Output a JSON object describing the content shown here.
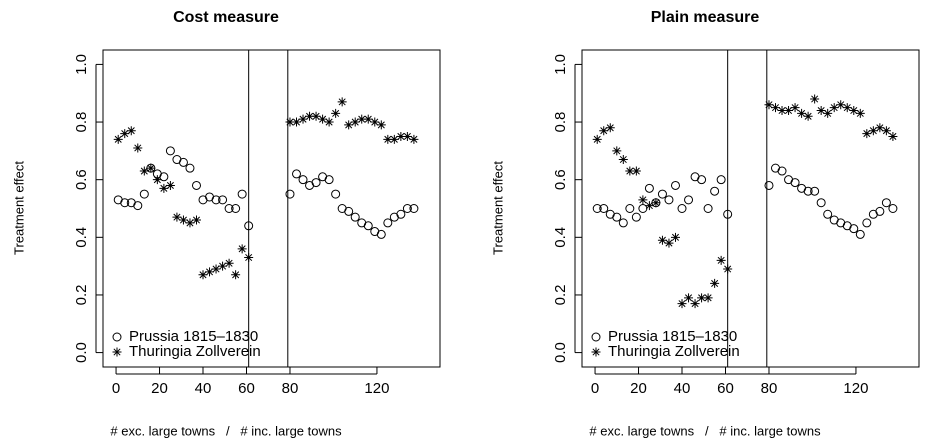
{
  "chart_data": [
    {
      "type": "scatter",
      "title": "Cost measure",
      "xlabel": "# exc. large towns   /   # inc. large towns",
      "ylabel": "Treatment effect",
      "x": [
        1,
        4,
        7,
        10,
        13,
        16,
        19,
        22,
        25,
        28,
        31,
        34,
        37,
        40,
        43,
        46,
        49,
        52,
        55,
        58,
        61,
        80,
        83,
        86,
        89,
        92,
        95,
        98,
        101,
        104,
        107,
        110,
        113,
        116,
        119,
        122,
        125,
        128,
        131,
        134,
        137
      ],
      "series": [
        {
          "name": "Prussia 1815–1830",
          "marker": "circle",
          "color": "#000000",
          "values": [
            0.53,
            0.52,
            0.52,
            0.51,
            0.55,
            0.64,
            0.62,
            0.61,
            0.7,
            0.67,
            0.66,
            0.64,
            0.58,
            0.53,
            0.54,
            0.53,
            0.53,
            0.5,
            0.5,
            0.55,
            0.44,
            0.55,
            0.62,
            0.6,
            0.58,
            0.59,
            0.61,
            0.6,
            0.55,
            0.5,
            0.49,
            0.47,
            0.45,
            0.44,
            0.42,
            0.41,
            0.45,
            0.47,
            0.48,
            0.5,
            0.5
          ]
        },
        {
          "name": "Thuringia Zollverein",
          "marker": "star",
          "color": "#000000",
          "values": [
            0.74,
            0.76,
            0.77,
            0.71,
            0.63,
            0.64,
            0.6,
            0.57,
            0.58,
            0.47,
            0.46,
            0.45,
            0.46,
            0.27,
            0.28,
            0.29,
            0.3,
            0.31,
            0.27,
            0.36,
            0.33,
            0.8,
            0.8,
            0.81,
            0.82,
            0.82,
            0.81,
            0.8,
            0.83,
            0.87,
            0.79,
            0.8,
            0.81,
            0.81,
            0.8,
            0.79,
            0.74,
            0.74,
            0.75,
            0.75,
            0.74
          ]
        }
      ],
      "xlim": [
        -6,
        149
      ],
      "ylim": [
        -0.05,
        1.05
      ],
      "xticks": [
        0,
        20,
        40,
        60,
        80,
        120
      ],
      "yticks": [
        {
          "value": 0,
          "label": "0.0"
        },
        {
          "value": 0.2,
          "label": "0.2"
        },
        {
          "value": 0.4,
          "label": "0.4"
        },
        {
          "value": 0.6,
          "label": "0.6"
        },
        {
          "value": 0.8,
          "label": "0.8"
        },
        {
          "value": 1,
          "label": "1.0"
        }
      ],
      "vlines": [
        61,
        79
      ],
      "legend": "bottomleft"
    },
    {
      "type": "scatter",
      "title": "Plain measure",
      "xlabel": "# exc. large towns   /   # inc. large towns",
      "ylabel": "Treatment effect",
      "x": [
        1,
        4,
        7,
        10,
        13,
        16,
        19,
        22,
        25,
        28,
        31,
        34,
        37,
        40,
        43,
        46,
        49,
        52,
        55,
        58,
        61,
        80,
        83,
        86,
        89,
        92,
        95,
        98,
        101,
        104,
        107,
        110,
        113,
        116,
        119,
        122,
        125,
        128,
        131,
        134,
        137
      ],
      "series": [
        {
          "name": "Prussia 1815–1830",
          "marker": "circle",
          "color": "#000000",
          "values": [
            0.5,
            0.5,
            0.48,
            0.47,
            0.45,
            0.5,
            0.47,
            0.5,
            0.57,
            0.52,
            0.55,
            0.53,
            0.58,
            0.5,
            0.53,
            0.61,
            0.6,
            0.5,
            0.56,
            0.6,
            0.48,
            0.58,
            0.64,
            0.63,
            0.6,
            0.59,
            0.57,
            0.56,
            0.56,
            0.52,
            0.48,
            0.46,
            0.45,
            0.44,
            0.43,
            0.41,
            0.45,
            0.48,
            0.49,
            0.52,
            0.5
          ]
        },
        {
          "name": "Thuringia Zollverein",
          "marker": "star",
          "color": "#000000",
          "values": [
            0.74,
            0.77,
            0.78,
            0.7,
            0.67,
            0.63,
            0.63,
            0.53,
            0.51,
            0.52,
            0.39,
            0.38,
            0.4,
            0.17,
            0.19,
            0.17,
            0.19,
            0.19,
            0.24,
            0.32,
            0.29,
            0.86,
            0.85,
            0.84,
            0.84,
            0.85,
            0.83,
            0.82,
            0.88,
            0.84,
            0.83,
            0.85,
            0.86,
            0.85,
            0.84,
            0.83,
            0.76,
            0.77,
            0.78,
            0.77,
            0.75
          ]
        }
      ],
      "xlim": [
        -6,
        149
      ],
      "ylim": [
        -0.05,
        1.05
      ],
      "xticks": [
        0,
        20,
        40,
        60,
        80,
        120
      ],
      "yticks": [
        {
          "value": 0,
          "label": "0.0"
        },
        {
          "value": 0.2,
          "label": "0.2"
        },
        {
          "value": 0.4,
          "label": "0.4"
        },
        {
          "value": 0.6,
          "label": "0.6"
        },
        {
          "value": 0.8,
          "label": "0.8"
        },
        {
          "value": 1,
          "label": "1.0"
        }
      ],
      "vlines": [
        61,
        79
      ],
      "legend": "bottomleft"
    }
  ]
}
